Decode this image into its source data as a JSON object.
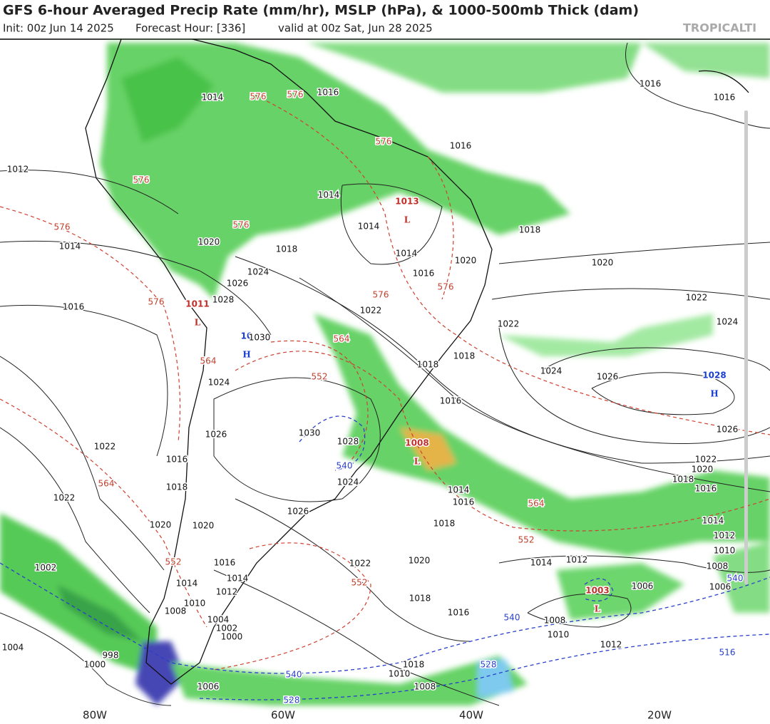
{
  "header": {
    "title": "GFS 6-hour Averaged Precip Rate (mm/hr), MSLP (hPa), & 1000-500mb Thick (dam)",
    "init": "Init: 00z Jun 14 2025",
    "forecast_hour": "Forecast Hour: [336]",
    "valid": "valid at 00z Sat, Jun 28 2025",
    "watermark": "TROPICALTI"
  },
  "axis": {
    "x_labels": [
      "80W",
      "60W",
      "40W",
      "20W"
    ]
  },
  "pressure_centers": [
    {
      "value": "1013",
      "letter": "L"
    },
    {
      "value": "1011",
      "letter": "L"
    },
    {
      "value": "10",
      "letter": "H"
    },
    {
      "value": "1028",
      "letter": "H"
    },
    {
      "value": "1008",
      "letter": "L"
    },
    {
      "value": "1003",
      "letter": "L"
    }
  ],
  "isobar_labels": [
    "1012",
    "1014",
    "1016",
    "1022",
    "1022",
    "1014",
    "1016",
    "1016",
    "1014",
    "1014",
    "1018",
    "1020",
    "1024",
    "1026",
    "1028",
    "1022",
    "1014",
    "1016",
    "1020",
    "1018",
    "1020",
    "1022",
    "1022",
    "1024",
    "1024",
    "1026",
    "1018",
    "1018",
    "1016",
    "1030",
    "1024",
    "1026",
    "1030",
    "1028",
    "1024",
    "1026",
    "1018",
    "1020",
    "1020",
    "1016",
    "1014",
    "1012",
    "1010",
    "1008",
    "1004",
    "1002",
    "1000",
    "1022",
    "1020",
    "1018",
    "1016",
    "1018",
    "1016",
    "1014",
    "1014",
    "1012",
    "1010",
    "1008",
    "1006",
    "1012",
    "1006",
    "1008",
    "1010",
    "1012",
    "1014",
    "1016",
    "1018",
    "1020",
    "1022",
    "1026",
    "1016",
    "1016",
    "1002",
    "1004",
    "1000",
    "998",
    "1006",
    "1008",
    "1010",
    "1018",
    "1014",
    "1016"
  ],
  "thickness_labels": [
    "576",
    "576",
    "576",
    "576",
    "576",
    "576",
    "576",
    "576",
    "564",
    "564",
    "564",
    "564",
    "552",
    "552",
    "552",
    "552",
    "576"
  ],
  "thickness_labels_cold": [
    "540",
    "540",
    "540",
    "540",
    "528",
    "528",
    "516"
  ]
}
